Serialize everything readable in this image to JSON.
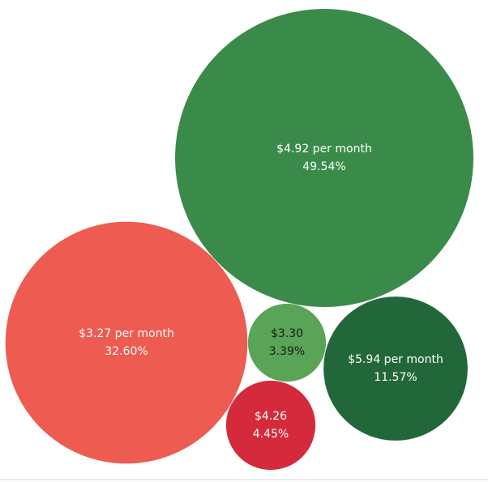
{
  "chart_data": {
    "type": "bubble",
    "title": "",
    "bubbles": [
      {
        "price": "$4.92 per month",
        "percent": "49.54%",
        "value": 49.54,
        "color": "#3a8b49",
        "text_color": "#ffffff"
      },
      {
        "price": "$3.27 per month",
        "percent": "32.60%",
        "value": 32.6,
        "color": "#ee5b50",
        "text_color": "#ffffff"
      },
      {
        "price": "$5.94 per month",
        "percent": "11.57%",
        "value": 11.57,
        "color": "#22673a",
        "text_color": "#ffffff"
      },
      {
        "price": "$4.26",
        "percent": "4.45%",
        "value": 4.45,
        "color": "#d42a3c",
        "text_color": "#ffffff"
      },
      {
        "price": "$3.30",
        "percent": "3.39%",
        "value": 3.39,
        "color": "#5aa457",
        "text_color": "#1a1a1a"
      }
    ]
  }
}
